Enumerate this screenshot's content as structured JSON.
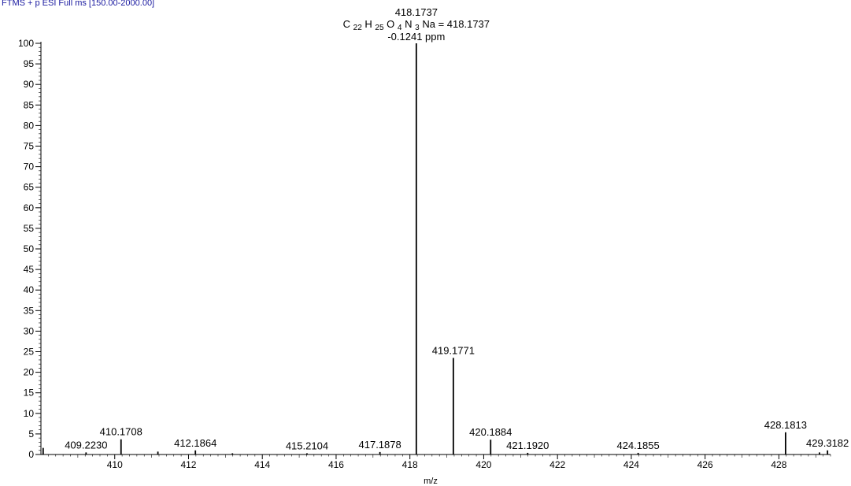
{
  "header": {
    "scan_filter": "FTMS + p ESI Full ms [150.00-2000.00]"
  },
  "chart_data": {
    "type": "bar",
    "title": "",
    "xlabel": "m/z",
    "ylabel": "",
    "xlim": [
      408.0,
      429.4
    ],
    "ylim": [
      0,
      100
    ],
    "x_ticks": [
      410,
      412,
      414,
      416,
      418,
      420,
      422,
      424,
      426,
      428
    ],
    "y_ticks": [
      0,
      5,
      10,
      15,
      20,
      25,
      30,
      35,
      40,
      45,
      50,
      55,
      60,
      65,
      70,
      75,
      80,
      85,
      90,
      95,
      100
    ],
    "peaks": [
      {
        "mz": 408.06,
        "intensity": 1.6
      },
      {
        "mz": 409.223,
        "intensity": 0.5,
        "label": "409.2230"
      },
      {
        "mz": 410.1708,
        "intensity": 3.7,
        "label": "410.1708"
      },
      {
        "mz": 411.17,
        "intensity": 0.7
      },
      {
        "mz": 412.1864,
        "intensity": 1.0,
        "label": "412.1864"
      },
      {
        "mz": 413.19,
        "intensity": 0.3
      },
      {
        "mz": 415.2104,
        "intensity": 0.3,
        "label": "415.2104"
      },
      {
        "mz": 417.1878,
        "intensity": 0.6,
        "label": "417.1878"
      },
      {
        "mz": 418.1737,
        "intensity": 100,
        "label": "418.1737"
      },
      {
        "mz": 419.1771,
        "intensity": 23.5,
        "label": "419.1771"
      },
      {
        "mz": 420.1884,
        "intensity": 3.6,
        "label": "420.1884"
      },
      {
        "mz": 421.192,
        "intensity": 0.4,
        "label": "421.1920"
      },
      {
        "mz": 424.1855,
        "intensity": 0.4,
        "label": "424.1855"
      },
      {
        "mz": 428.1813,
        "intensity": 5.4,
        "label": "428.1813"
      },
      {
        "mz": 429.1,
        "intensity": 0.5
      },
      {
        "mz": 429.3182,
        "intensity": 1.0,
        "label": "429.3182"
      }
    ],
    "annotation": {
      "mz": 418.1737,
      "lines": [
        "418.1737",
        "C 22 H 25 O 4 N 3 Na = 418.1737",
        "-0.1241 ppm"
      ]
    },
    "colors": {
      "header": "#1a1aa0",
      "trace": "#000000"
    }
  }
}
